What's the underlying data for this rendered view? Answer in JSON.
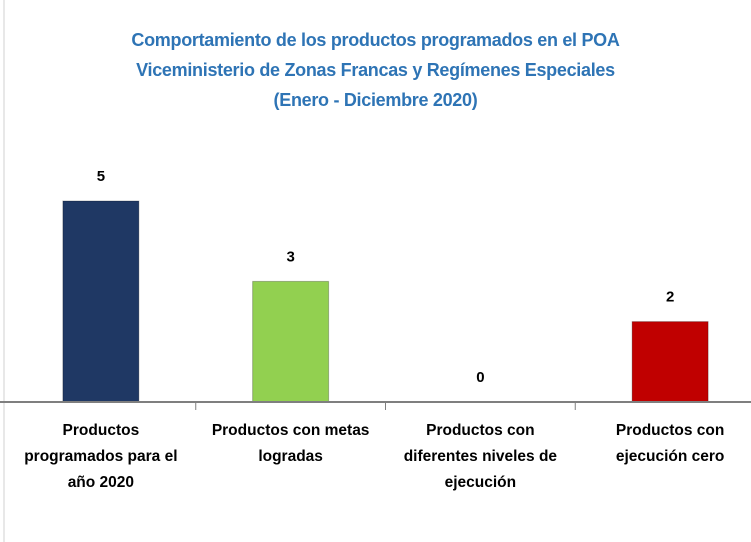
{
  "chart_data": {
    "type": "bar",
    "title": [
      "Comportamiento de los productos programados en el POA",
      "Viceministerio de Zonas Francas y Regímenes Especiales",
      "(Enero - Diciembre 2020)"
    ],
    "categories": [
      "Productos programados para el año 2020",
      "Productos con metas logradas",
      "Productos con diferentes niveles de ejecución",
      "Productos con ejecución cero"
    ],
    "values": [
      5,
      3,
      0,
      2
    ],
    "colors": [
      "#1f3864",
      "#92d050",
      null,
      "#c00000"
    ]
  }
}
